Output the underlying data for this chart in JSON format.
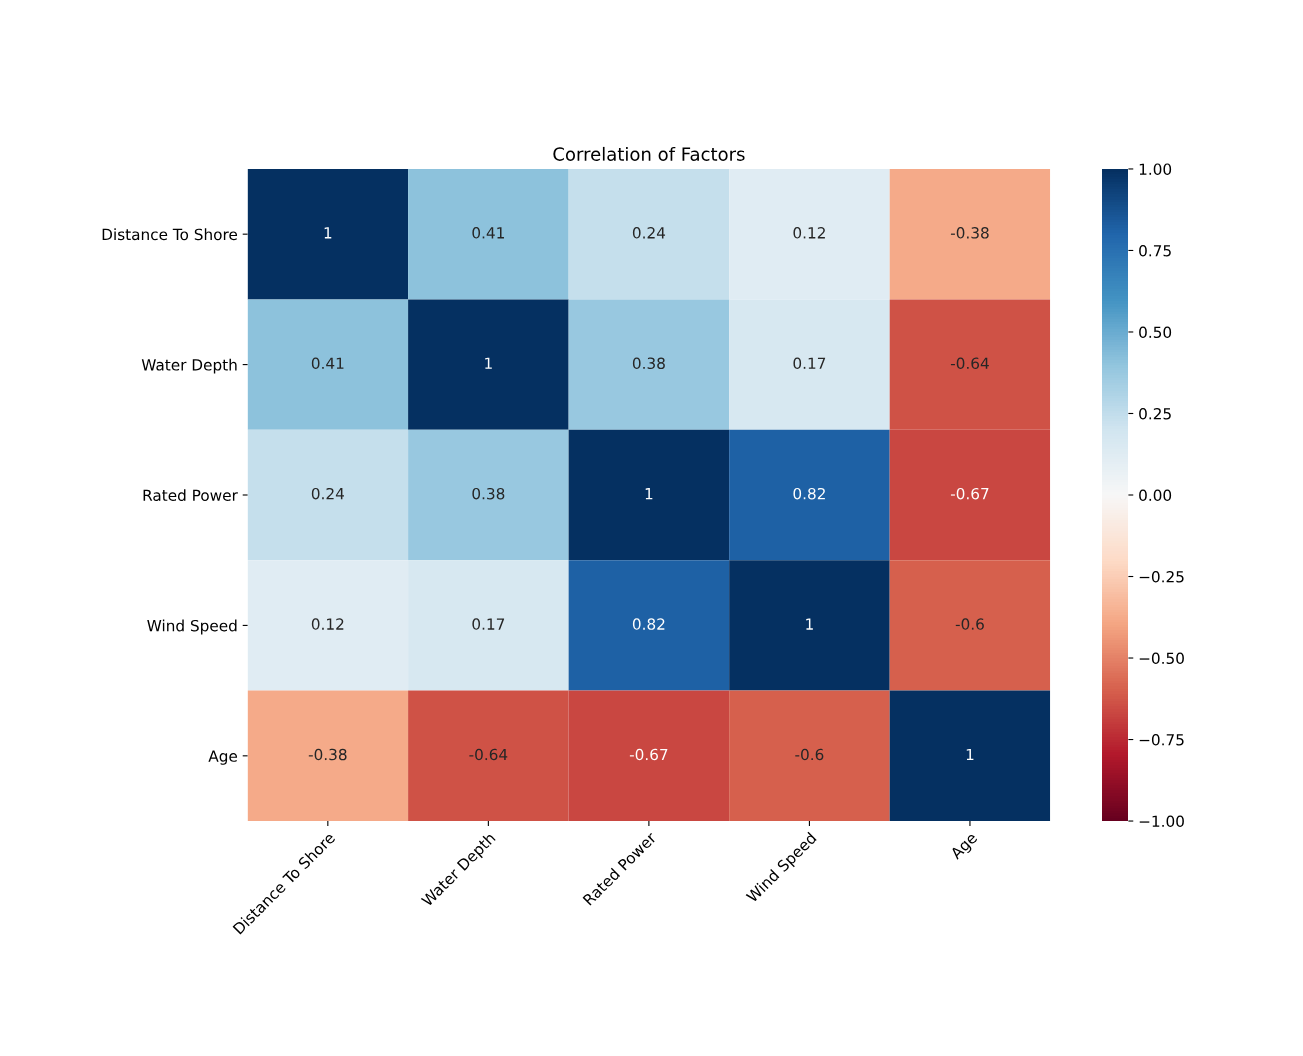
{
  "chart_data": {
    "type": "heatmap",
    "title": "Correlation of Factors",
    "categories": [
      "Distance To Shore",
      "Water Depth",
      "Rated Power",
      "Wind Speed",
      "Age"
    ],
    "y_categories": [
      "Distance To Shore",
      "Water Depth",
      "Rated Power",
      "Wind Speed",
      "Age"
    ],
    "cells": [
      [
        1,
        0.41,
        0.24,
        0.12,
        -0.38
      ],
      [
        0.41,
        1,
        0.38,
        0.17,
        -0.64
      ],
      [
        0.24,
        0.38,
        1,
        0.82,
        -0.67
      ],
      [
        0.12,
        0.17,
        0.82,
        1,
        -0.6
      ],
      [
        -0.38,
        -0.64,
        -0.67,
        -0.6,
        1
      ]
    ],
    "clim": [
      -1,
      1
    ],
    "cticks": [
      {
        "value": -1,
        "label": "−1.00"
      },
      {
        "value": -0.75,
        "label": "−0.75"
      },
      {
        "value": -0.5,
        "label": "−0.50"
      },
      {
        "value": -0.25,
        "label": "−0.25"
      },
      {
        "value": 0,
        "label": "0.00"
      },
      {
        "value": 0.25,
        "label": "0.25"
      },
      {
        "value": 0.5,
        "label": "0.50"
      },
      {
        "value": 0.75,
        "label": "0.75"
      },
      {
        "value": 1,
        "label": "1.00"
      }
    ],
    "data_labels": true
  }
}
